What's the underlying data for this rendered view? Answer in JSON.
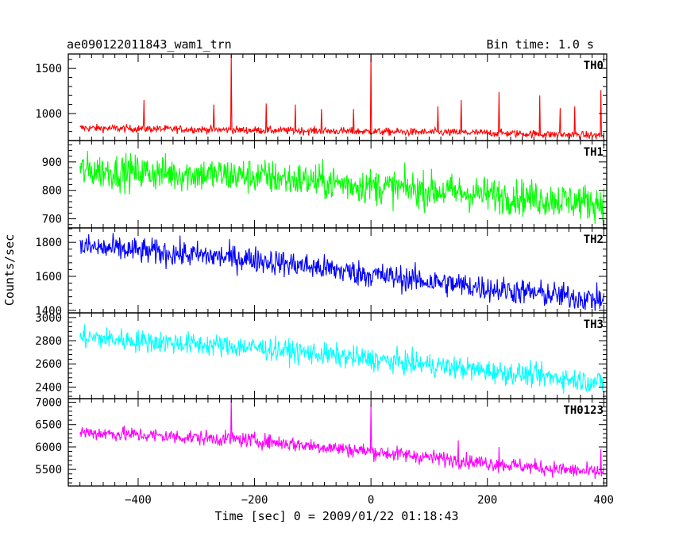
{
  "chart_data": {
    "type": "line",
    "title": "ae090122011843_wam1_trn",
    "subtitle": "Bin time: 1.0 s",
    "xlabel": "Time [sec] 0 = 2009/01/22 01:18:43",
    "ylabel": "Counts/sec",
    "xlim": [
      -520,
      405
    ],
    "x_ticks": [
      -400,
      -200,
      0,
      200,
      400
    ],
    "x_tick_labels": [
      "−400",
      "−200",
      "0",
      "200",
      "400"
    ],
    "x_data_range": [
      -500,
      400
    ],
    "bin_time": 1.0,
    "panels": [
      {
        "name": "TH0",
        "color": "#ff0000",
        "ylim": [
          700,
          1660
        ],
        "y_ticks": [
          1000,
          1500
        ],
        "y_tick_labels": [
          "1000",
          "1500"
        ],
        "trend": [
          [
            -500,
            840
          ],
          [
            -200,
            815
          ],
          [
            0,
            800
          ],
          [
            200,
            785
          ],
          [
            400,
            755
          ]
        ],
        "noise": 30,
        "spikes": [
          [
            -390,
            1150
          ],
          [
            -270,
            1100
          ],
          [
            -240,
            1650
          ],
          [
            -180,
            1110
          ],
          [
            -130,
            1100
          ],
          [
            -85,
            1050
          ],
          [
            -30,
            1050
          ],
          [
            0,
            1660
          ],
          [
            115,
            1080
          ],
          [
            155,
            1150
          ],
          [
            220,
            1240
          ],
          [
            290,
            1200
          ],
          [
            325,
            1060
          ],
          [
            350,
            1080
          ],
          [
            395,
            1260
          ]
        ]
      },
      {
        "name": "TH1",
        "color": "#00ff00",
        "ylim": [
          668,
          975
        ],
        "y_ticks": [
          700,
          800,
          900
        ],
        "y_tick_labels": [
          "700",
          "800",
          "900"
        ],
        "trend": [
          [
            -500,
            870
          ],
          [
            -200,
            850
          ],
          [
            0,
            815
          ],
          [
            200,
            785
          ],
          [
            400,
            755
          ]
        ],
        "noise": 45,
        "spikes": []
      },
      {
        "name": "TH2",
        "color": "#0000ff",
        "ylim": [
          1385,
          1885
        ],
        "y_ticks": [
          1400,
          1600,
          1800
        ],
        "y_tick_labels": [
          "1400",
          "1600",
          "1800"
        ],
        "trend": [
          [
            -500,
            1775
          ],
          [
            -200,
            1700
          ],
          [
            0,
            1610
          ],
          [
            200,
            1530
          ],
          [
            400,
            1460
          ]
        ],
        "noise": 55,
        "spikes": []
      },
      {
        "name": "TH3",
        "color": "#00ffff",
        "ylim": [
          2300,
          3040
        ],
        "y_ticks": [
          2400,
          2600,
          2800,
          3000
        ],
        "y_tick_labels": [
          "2400",
          "2600",
          "2800",
          "3000"
        ],
        "trend": [
          [
            -500,
            2830
          ],
          [
            -200,
            2740
          ],
          [
            0,
            2640
          ],
          [
            200,
            2540
          ],
          [
            400,
            2440
          ]
        ],
        "noise": 70,
        "spikes": []
      },
      {
        "name": "TH0123",
        "color": "#ff00ff",
        "ylim": [
          5130,
          7080
        ],
        "y_ticks": [
          5500,
          6000,
          6500,
          7000
        ],
        "y_tick_labels": [
          "5500",
          "6000",
          "6500",
          "7000"
        ],
        "trend": [
          [
            -500,
            6330
          ],
          [
            -200,
            6150
          ],
          [
            0,
            5900
          ],
          [
            200,
            5640
          ],
          [
            400,
            5420
          ]
        ],
        "noise": 120,
        "spikes": [
          [
            -240,
            7050
          ],
          [
            0,
            6950
          ],
          [
            150,
            6150
          ],
          [
            220,
            6000
          ],
          [
            395,
            5950
          ]
        ]
      }
    ]
  }
}
